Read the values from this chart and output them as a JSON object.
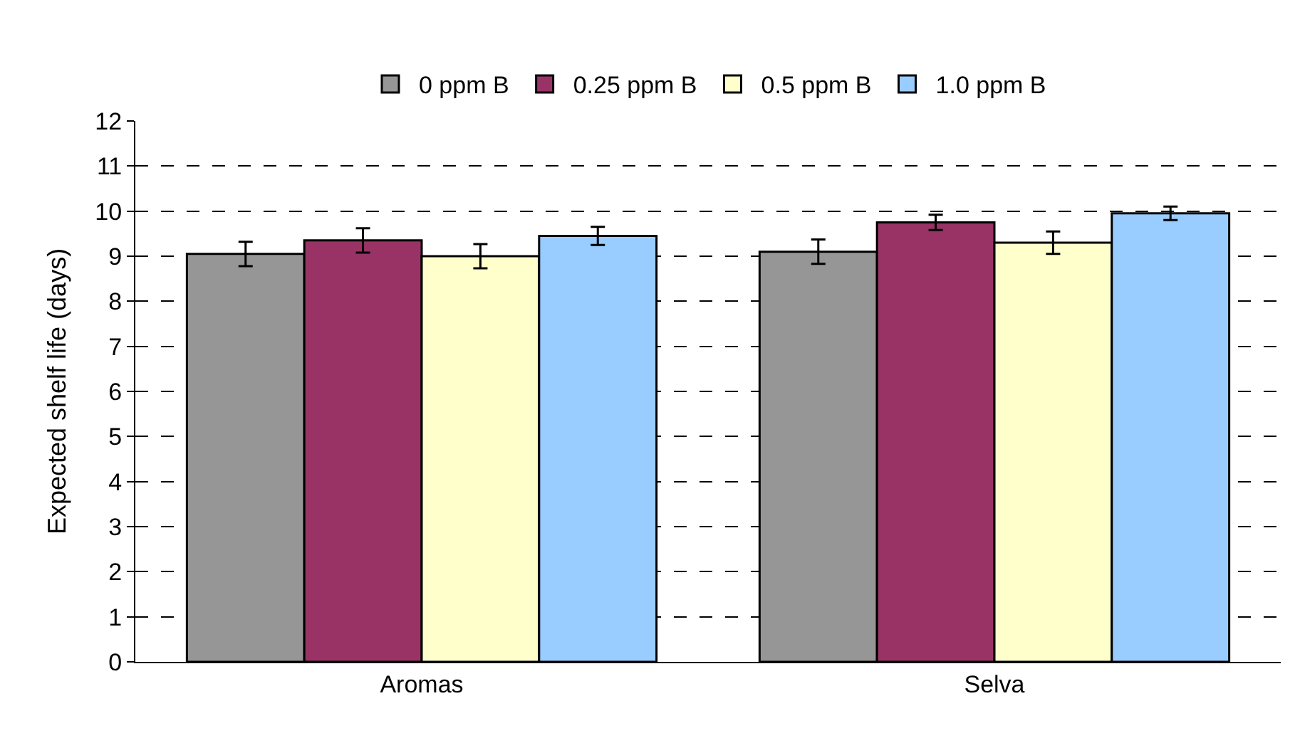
{
  "chart_data": {
    "type": "bar",
    "ylabel": "Expected shelf life (days)",
    "categories": [
      "Aromas",
      "Selva"
    ],
    "series": [
      {
        "name": "0 ppm B",
        "color": "#969696",
        "values": [
          9.05,
          9.1
        ],
        "errors": [
          0.27,
          0.27
        ]
      },
      {
        "name": "0.25 ppm B",
        "color": "#993366",
        "values": [
          9.35,
          9.75
        ],
        "errors": [
          0.27,
          0.17
        ]
      },
      {
        "name": "0.5 ppm B",
        "color": "#ffffcc",
        "values": [
          9.0,
          9.3
        ],
        "errors": [
          0.27,
          0.25
        ]
      },
      {
        "name": "1.0 ppm B",
        "color": "#99ccff",
        "values": [
          9.45,
          9.95
        ],
        "errors": [
          0.2,
          0.15
        ]
      }
    ],
    "ylim": [
      0,
      12
    ],
    "yticks": [
      0,
      1,
      2,
      3,
      4,
      5,
      6,
      7,
      8,
      9,
      10,
      11,
      12
    ],
    "grid": "y",
    "legend": "top"
  }
}
